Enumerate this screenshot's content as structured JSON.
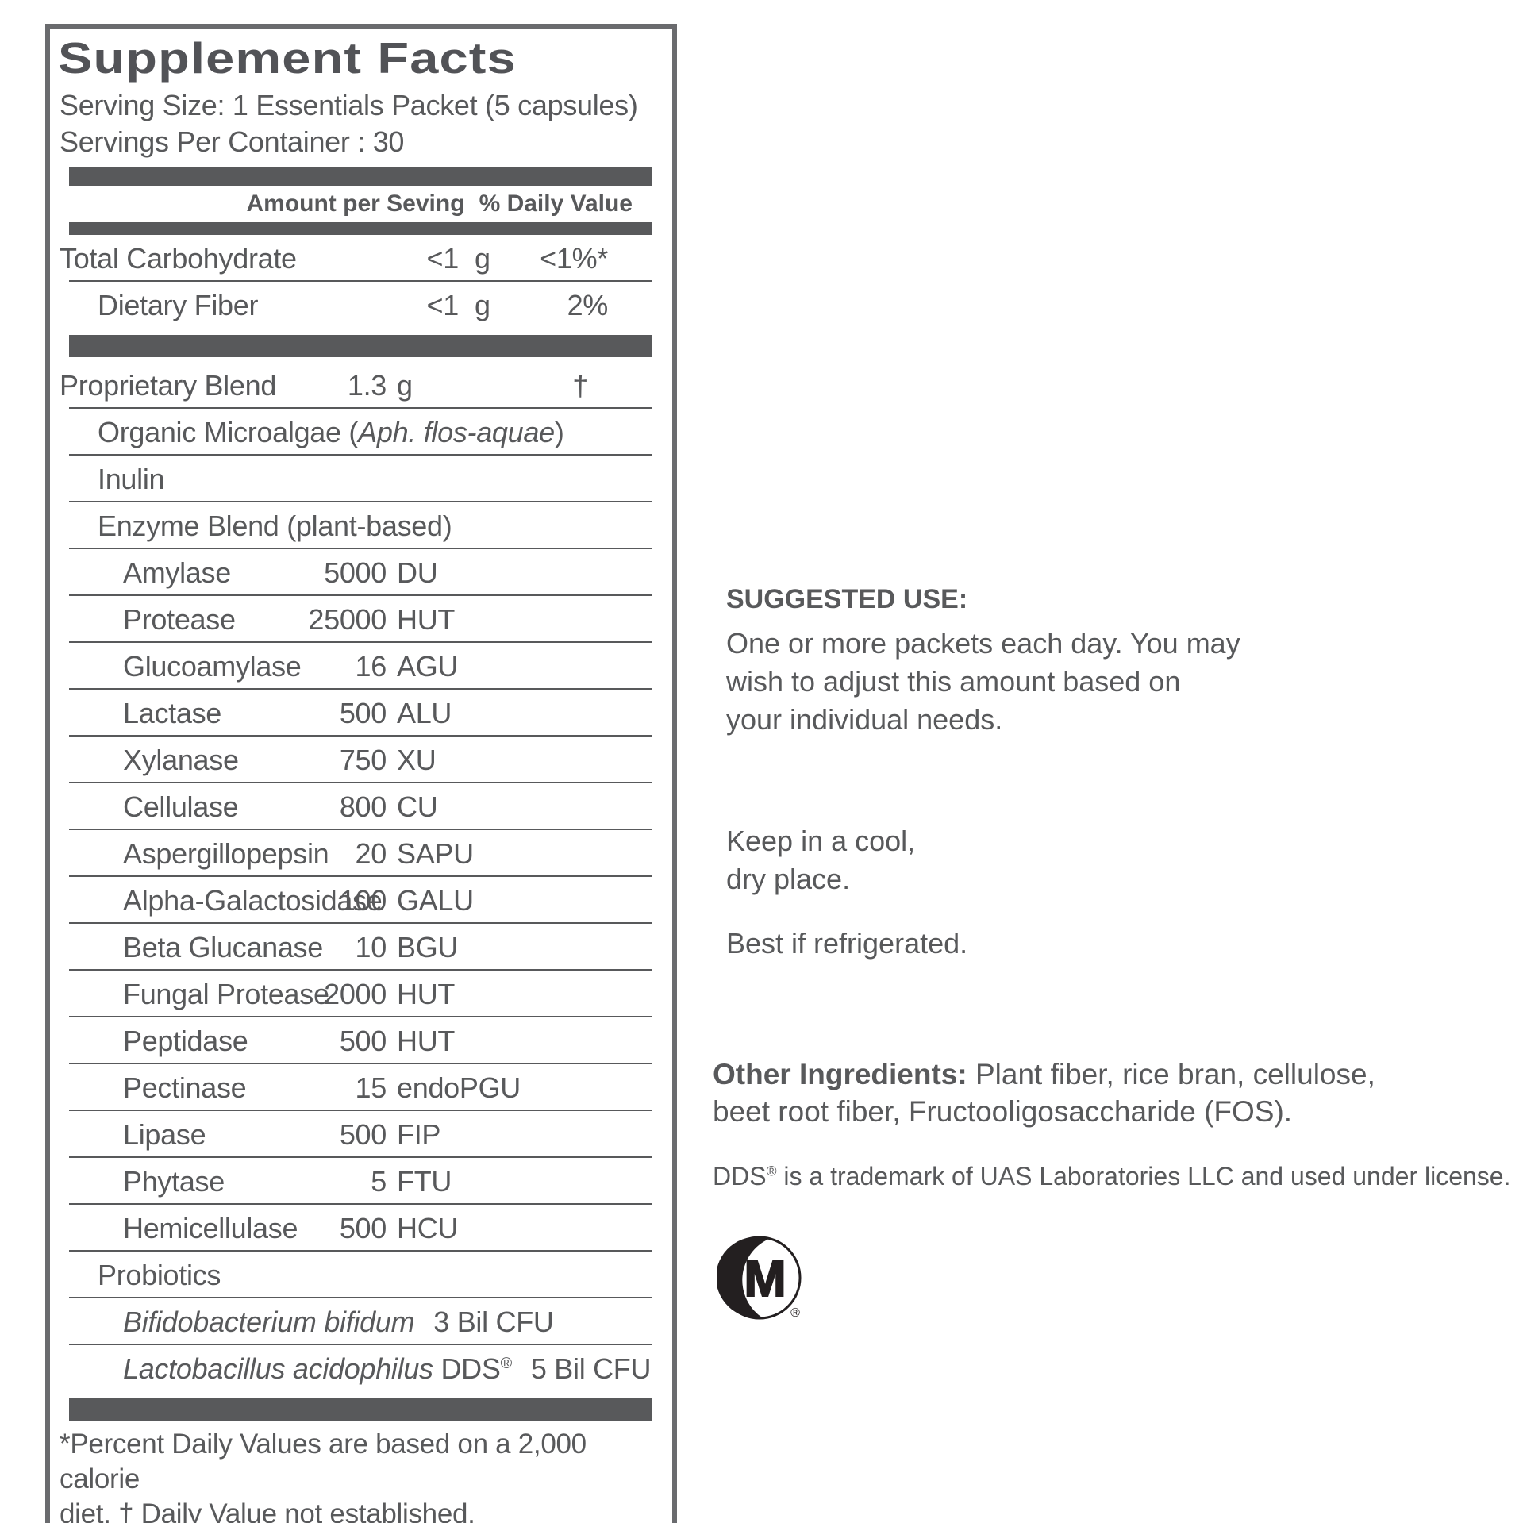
{
  "colors": {
    "text_gray": "#58595b",
    "border_gray": "#6a6b6e",
    "logo_black": "#231f20"
  },
  "label": {
    "title": "Supplement Facts",
    "serving_size": "Serving Size: 1 Essentials Packet (5 capsules)",
    "servings_per_container": "Servings Per Container : 30",
    "col_amount": "Amount per Seving",
    "col_dv": "% Daily Value",
    "rows": [
      {
        "kind": "nutrient",
        "cols": "wide",
        "indent": 0,
        "name": "Total Carbohydrate",
        "amount": "<1",
        "unit": "g",
        "dv": "<1%*",
        "sep": true
      },
      {
        "kind": "nutrient",
        "cols": "wide",
        "indent": 1,
        "name": "Dietary Fiber",
        "amount": "<1",
        "unit": "g",
        "dv": "2%",
        "sep": false
      },
      {
        "kind": "bar"
      },
      {
        "kind": "nutrient",
        "indent": 0,
        "name": "Proprietary Blend",
        "amount": "1.3",
        "unit": "g",
        "dv": "†",
        "dagger": true,
        "sep": true
      },
      {
        "kind": "nutrient",
        "indent": 1,
        "name_parts": [
          {
            "t": "Organic Microalgae ("
          },
          {
            "t": "Aph. flos-aquae",
            "i": true
          },
          {
            "t": ")"
          }
        ],
        "sep": true
      },
      {
        "kind": "nutrient",
        "indent": 1,
        "name": "Inulin",
        "sep": true
      },
      {
        "kind": "nutrient",
        "indent": 1,
        "name": "Enzyme Blend (plant-based)",
        "sep": true
      },
      {
        "kind": "nutrient",
        "indent": 2,
        "name": "Amylase",
        "amount": "5000",
        "unit": "DU",
        "sep": true
      },
      {
        "kind": "nutrient",
        "indent": 2,
        "name": "Protease",
        "amount": "25000",
        "unit": "HUT",
        "sep": true
      },
      {
        "kind": "nutrient",
        "indent": 2,
        "name": "Glucoamylase",
        "amount": "16",
        "unit": "AGU",
        "sep": true
      },
      {
        "kind": "nutrient",
        "indent": 2,
        "name": "Lactase",
        "amount": "500",
        "unit": "ALU",
        "sep": true
      },
      {
        "kind": "nutrient",
        "indent": 2,
        "name": "Xylanase",
        "amount": "750",
        "unit": "XU",
        "sep": true
      },
      {
        "kind": "nutrient",
        "indent": 2,
        "name": "Cellulase",
        "amount": "800",
        "unit": "CU",
        "sep": true
      },
      {
        "kind": "nutrient",
        "indent": 2,
        "name": "Aspergillopepsin",
        "amount": "20",
        "unit": "SAPU",
        "sep": true
      },
      {
        "kind": "nutrient",
        "indent": 2,
        "name": "Alpha-Galactosidase",
        "amount": "100",
        "unit": "GALU",
        "sep": true
      },
      {
        "kind": "nutrient",
        "indent": 2,
        "name": "Beta Glucanase",
        "amount": "10",
        "unit": "BGU",
        "sep": true
      },
      {
        "kind": "nutrient",
        "indent": 2,
        "name": "Fungal Protease",
        "amount": "2000",
        "unit": "HUT",
        "sep": true
      },
      {
        "kind": "nutrient",
        "indent": 2,
        "name": "Peptidase",
        "amount": "500",
        "unit": "HUT",
        "sep": true
      },
      {
        "kind": "nutrient",
        "indent": 2,
        "name": "Pectinase",
        "amount": "15",
        "unit": "endoPGU",
        "sep": true
      },
      {
        "kind": "nutrient",
        "indent": 2,
        "name": "Lipase",
        "amount": "500",
        "unit": "FIP",
        "sep": true
      },
      {
        "kind": "nutrient",
        "indent": 2,
        "name": "Phytase",
        "amount": "5",
        "unit": "FTU",
        "sep": true
      },
      {
        "kind": "nutrient",
        "indent": 2,
        "name": "Hemicellulase",
        "amount": "500",
        "unit": "HCU",
        "sep": true
      },
      {
        "kind": "nutrient",
        "indent": 1,
        "name": "Probiotics",
        "sep": true
      },
      {
        "kind": "nutrient",
        "indent": 2,
        "name_parts": [
          {
            "t": "Bifidobacterium bifidum",
            "i": true
          }
        ],
        "inline_amount": "3 Bil CFU",
        "sep": true
      },
      {
        "kind": "nutrient",
        "indent": 2,
        "name_parts": [
          {
            "t": "Lactobacillus acidophilus",
            "i": true
          },
          {
            "t": " DDS"
          },
          {
            "t": "®",
            "sup": true
          }
        ],
        "inline_amount": "5 Bil CFU",
        "sep": false
      },
      {
        "kind": "bar"
      }
    ],
    "footnote_line1": "*Percent Daily Values are based on a 2,000 calorie",
    "footnote_line2": "diet. † Daily Value not established."
  },
  "right": {
    "suggested_use_heading": "SUGGESTED USE:",
    "suggested_use_lines": [
      "One or more packets each day. You may",
      "wish to adjust this amount based on",
      "your individual needs."
    ],
    "storage_lines": [
      "Keep in a cool,",
      "dry place."
    ],
    "refrigerate": "Best if refrigerated.",
    "other_ingredients_label": "Other Ingredients:",
    "other_ingredients_rest": " Plant fiber, rice bran, cellulose,",
    "other_ingredients_line2": "beet root fiber, Fructooligosaccharide (FOS).",
    "trademark_pre": "DDS",
    "trademark_sup": "®",
    "trademark_post": " is a trademark of UAS Laboratories LLC and used under license.",
    "logo_letter": "M",
    "logo_reg": "®"
  }
}
